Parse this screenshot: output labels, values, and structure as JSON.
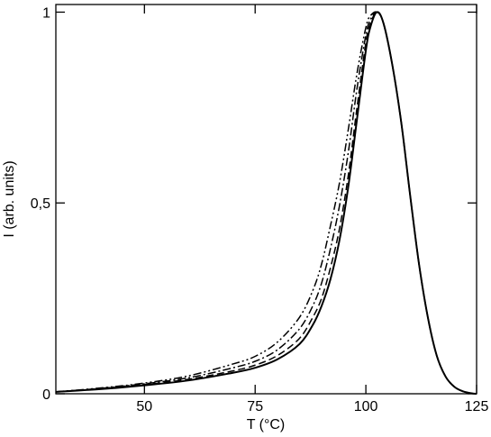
{
  "chart_data": {
    "type": "line",
    "title": "",
    "xlabel": "T (°C)",
    "ylabel": "I (arb. units)",
    "xlim": [
      30,
      125
    ],
    "ylim": [
      0,
      1.02
    ],
    "x_ticks": [
      {
        "value": 50,
        "label": "50"
      },
      {
        "value": 75,
        "label": "75"
      },
      {
        "value": 100,
        "label": "100"
      },
      {
        "value": 125,
        "label": "125"
      }
    ],
    "y_ticks": [
      {
        "value": 0,
        "label": "0"
      },
      {
        "value": 0.5,
        "label": "0,5"
      },
      {
        "value": 1,
        "label": "1"
      }
    ],
    "grid": false,
    "legend": "none",
    "series": [
      {
        "style": "solid",
        "color": "#000000",
        "x": [
          30,
          40,
          50,
          60,
          70,
          75,
          80,
          85,
          88,
          90,
          92,
          94,
          96,
          98,
          100,
          101,
          102.5,
          104,
          106,
          108,
          110,
          112,
          114,
          116,
          118,
          120,
          122,
          124,
          125
        ],
        "y": [
          0.005,
          0.012,
          0.022,
          0.035,
          0.055,
          0.068,
          0.09,
          0.13,
          0.18,
          0.23,
          0.3,
          0.4,
          0.54,
          0.72,
          0.9,
          0.96,
          1.0,
          0.97,
          0.86,
          0.71,
          0.52,
          0.34,
          0.2,
          0.1,
          0.045,
          0.018,
          0.006,
          0.001,
          0.0
        ]
      },
      {
        "style": "dashed",
        "color": "#000000",
        "x": [
          30,
          40,
          50,
          60,
          70,
          75,
          80,
          85,
          88,
          90,
          92,
          94,
          96,
          98,
          100,
          101,
          102.5,
          104,
          106,
          108,
          110,
          112,
          114,
          116,
          118,
          120,
          122,
          124,
          125
        ],
        "y": [
          0.005,
          0.013,
          0.024,
          0.038,
          0.06,
          0.075,
          0.1,
          0.145,
          0.2,
          0.25,
          0.33,
          0.43,
          0.57,
          0.75,
          0.92,
          0.97,
          1.0,
          0.97,
          0.86,
          0.71,
          0.52,
          0.34,
          0.2,
          0.1,
          0.045,
          0.018,
          0.006,
          0.001,
          0.0
        ]
      },
      {
        "style": "dash-dot",
        "color": "#000000",
        "x": [
          30,
          40,
          50,
          60,
          70,
          75,
          80,
          85,
          88,
          90,
          92,
          94,
          96,
          98,
          100,
          101,
          102.5,
          104,
          106,
          108,
          110,
          112,
          114,
          116,
          118,
          120,
          122,
          124,
          125
        ],
        "y": [
          0.005,
          0.014,
          0.026,
          0.042,
          0.068,
          0.085,
          0.115,
          0.17,
          0.23,
          0.29,
          0.38,
          0.49,
          0.63,
          0.8,
          0.94,
          0.98,
          1.0,
          0.97,
          0.86,
          0.71,
          0.52,
          0.34,
          0.2,
          0.1,
          0.045,
          0.018,
          0.006,
          0.001,
          0.0
        ]
      },
      {
        "style": "dash-dot-dot",
        "color": "#000000",
        "x": [
          30,
          40,
          50,
          60,
          70,
          75,
          80,
          85,
          88,
          90,
          92,
          94,
          96,
          98,
          100,
          101,
          102.5,
          104,
          106,
          108,
          110,
          112,
          114,
          116,
          118,
          120,
          122,
          124,
          125
        ],
        "y": [
          0.005,
          0.015,
          0.028,
          0.047,
          0.078,
          0.098,
          0.135,
          0.2,
          0.27,
          0.34,
          0.44,
          0.55,
          0.69,
          0.84,
          0.96,
          0.99,
          1.0,
          0.97,
          0.86,
          0.71,
          0.52,
          0.34,
          0.2,
          0.1,
          0.045,
          0.018,
          0.006,
          0.001,
          0.0
        ]
      }
    ]
  }
}
